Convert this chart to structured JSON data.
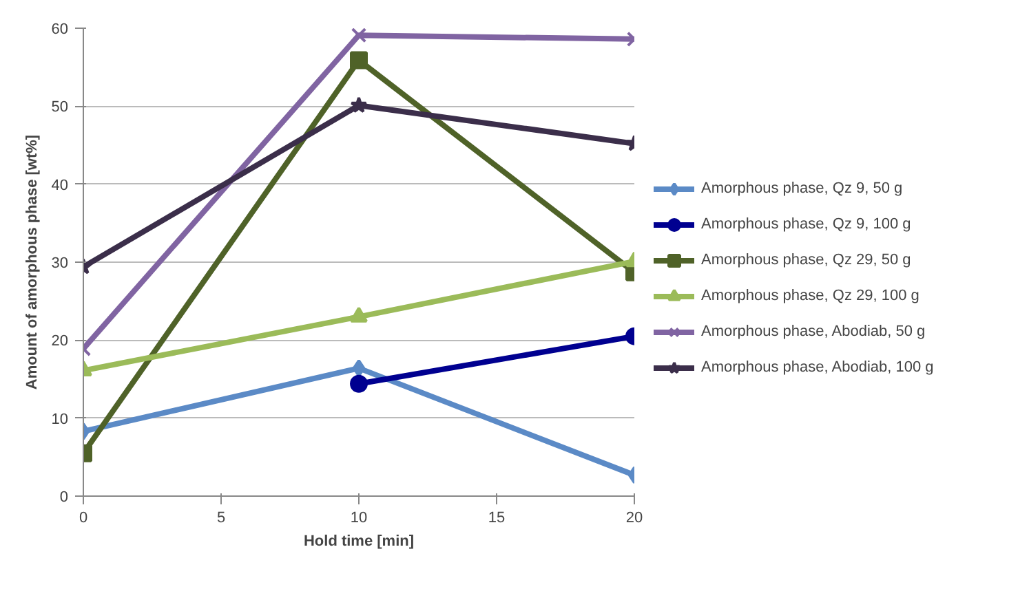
{
  "chart_data": {
    "type": "line",
    "xlabel": "Hold time [min]",
    "ylabel": "Amount of amorphous phase [wt%]",
    "x": [
      0,
      10,
      20
    ],
    "xlim": [
      0,
      20
    ],
    "xticks": [
      0,
      5,
      10,
      15,
      20
    ],
    "ylim": [
      0,
      60
    ],
    "yticks": [
      0,
      10,
      20,
      30,
      40,
      50,
      60
    ],
    "grid": "y",
    "legend": "right",
    "line_style": "solid",
    "series": [
      {
        "name": "Amorphous phase, Qz 9, 50 g",
        "color": "#5b8ac6",
        "marker": "diamond",
        "values": [
          8.3,
          16.4,
          2.7
        ]
      },
      {
        "name": "Amorphous phase, Qz 9, 100 g",
        "color": "#000090",
        "marker": "circle",
        "values": [
          null,
          14.4,
          20.5
        ]
      },
      {
        "name": "Amorphous phase, Qz 29, 50 g",
        "color": "#4f6228",
        "marker": "square",
        "values": [
          5.5,
          55.9,
          28.7
        ]
      },
      {
        "name": "Amorphous phase, Qz 29, 100 g",
        "color": "#9bbb59",
        "marker": "triangle",
        "values": [
          16.1,
          23.0,
          30.1
        ]
      },
      {
        "name": "Amorphous phase, Abodiab, 50 g",
        "color": "#8064a2",
        "marker": "cross",
        "values": [
          18.9,
          59.1,
          58.6
        ]
      },
      {
        "name": "Amorphous phase, Abodiab, 100 g",
        "color": "#3b2e4a",
        "marker": "star",
        "values": [
          29.4,
          50.1,
          45.2
        ]
      }
    ]
  }
}
